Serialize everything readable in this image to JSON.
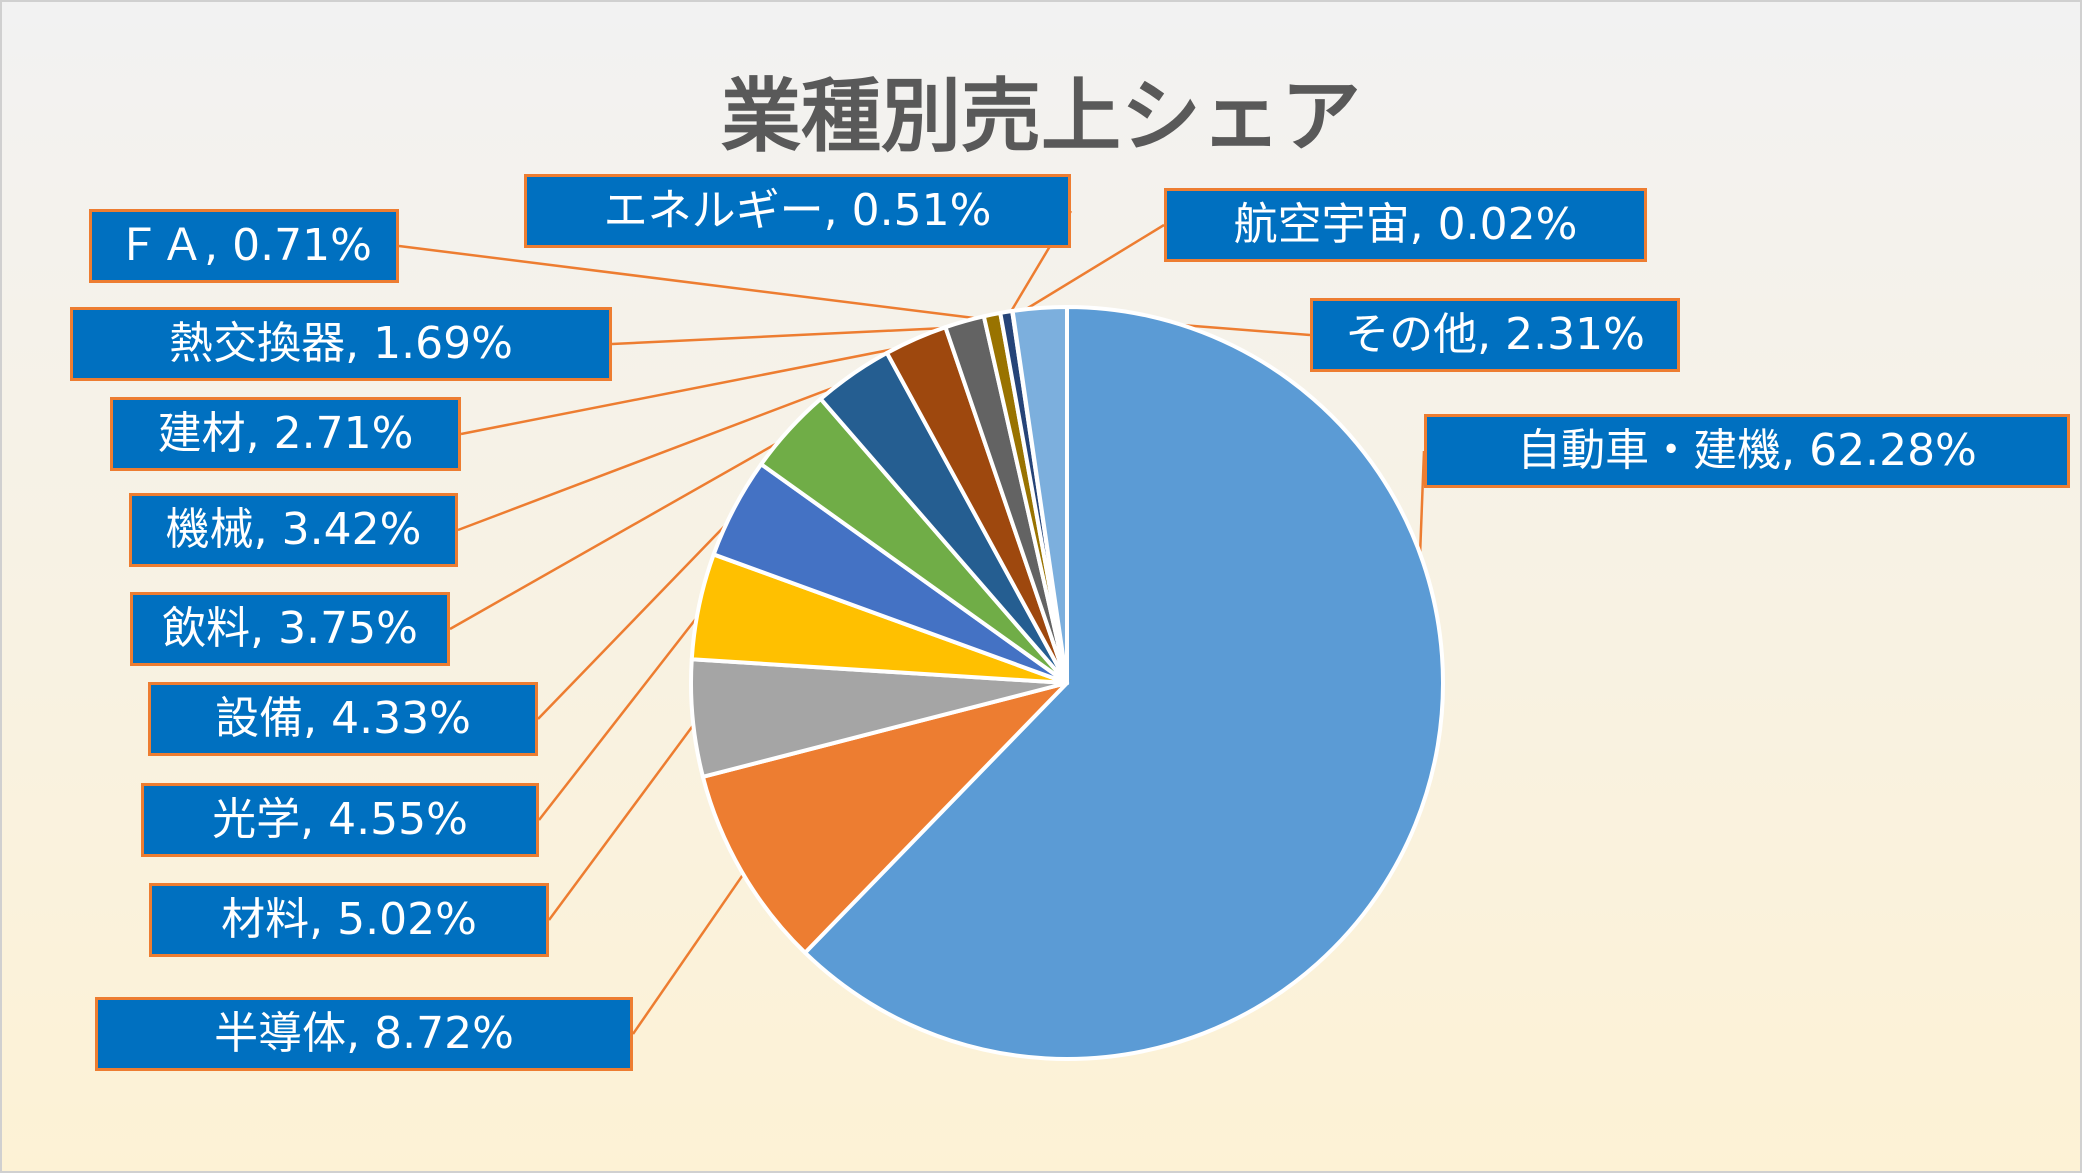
{
  "chart_data": {
    "type": "pie",
    "title": "業種別売上シェア",
    "slices": [
      {
        "label": "自動車・建機",
        "value": 62.28,
        "text": "自動車・建機, 62.28%",
        "color": "#5b9bd5"
      },
      {
        "label": "半導体",
        "value": 8.72,
        "text": "半導体, 8.72%",
        "color": "#ed7d31"
      },
      {
        "label": "材料",
        "value": 5.02,
        "text": "材料, 5.02%",
        "color": "#a5a5a5"
      },
      {
        "label": "光学",
        "value": 4.55,
        "text": "光学, 4.55%",
        "color": "#ffc000"
      },
      {
        "label": "設備",
        "value": 4.33,
        "text": "設備, 4.33%",
        "color": "#4472c4"
      },
      {
        "label": "飲料",
        "value": 3.75,
        "text": "飲料, 3.75%",
        "color": "#70ad47"
      },
      {
        "label": "機械",
        "value": 3.42,
        "text": "機械, 3.42%",
        "color": "#255e91"
      },
      {
        "label": "建材",
        "value": 2.71,
        "text": "建材, 2.71%",
        "color": "#9e480e"
      },
      {
        "label": "熱交換器",
        "value": 1.69,
        "text": "熱交換器, 1.69%",
        "color": "#636363"
      },
      {
        "label": "ＦＡ",
        "value": 0.71,
        "text": "ＦＡ, 0.71%",
        "color": "#997300"
      },
      {
        "label": "エネルギー",
        "value": 0.51,
        "text": "エネルギー, 0.51%",
        "color": "#264478"
      },
      {
        "label": "航空宇宙",
        "value": 0.02,
        "text": "航空宇宙, 0.02%",
        "color": "#43682b"
      },
      {
        "label": "その他",
        "value": 2.31,
        "text": "その他, 2.31%",
        "color": "#7cafdd"
      }
    ],
    "data_labels": "callout",
    "label_colors": {
      "fill": "#0070c0",
      "border": "#ed7d31",
      "text": "#ffffff",
      "leader": "#ed7d31"
    },
    "background": {
      "top": "#f2f2f2",
      "bottom": "#fdf2d5"
    }
  }
}
